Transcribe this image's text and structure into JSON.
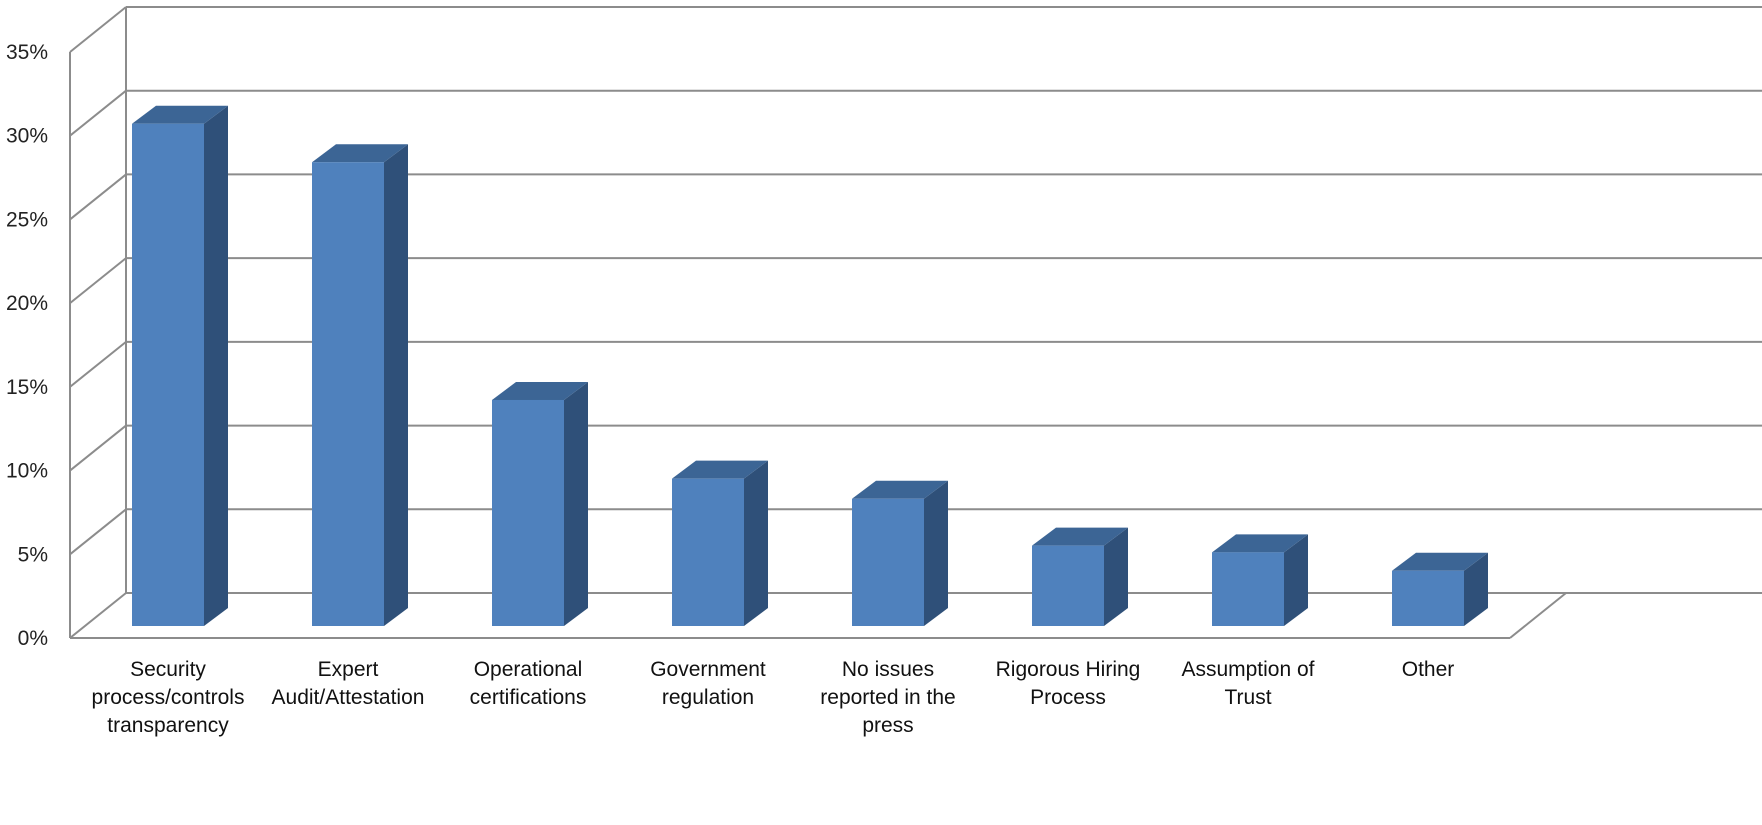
{
  "chart_data": {
    "type": "bar",
    "categories": [
      [
        "Security",
        "process/controls",
        "transparency"
      ],
      [
        "Expert",
        "Audit/Attestation"
      ],
      [
        "Operational",
        "certifications"
      ],
      [
        "Government",
        "regulation"
      ],
      [
        "No issues",
        "reported in the",
        "press"
      ],
      [
        "Rigorous Hiring",
        "Process"
      ],
      [
        "Assumption of",
        "Trust"
      ],
      [
        "Other"
      ]
    ],
    "values": [
      30,
      27.7,
      13.5,
      8.8,
      7.6,
      4.8,
      4.4,
      3.3
    ],
    "ylim": [
      0,
      35
    ],
    "yticks": [
      {
        "value": 0,
        "label": "0%"
      },
      {
        "value": 5,
        "label": "5%"
      },
      {
        "value": 10,
        "label": "10%"
      },
      {
        "value": 15,
        "label": "15%"
      },
      {
        "value": 20,
        "label": "20%"
      },
      {
        "value": 25,
        "label": "25%"
      },
      {
        "value": 30,
        "label": "30%"
      },
      {
        "value": 35,
        "label": "35%"
      }
    ],
    "grid": true,
    "style": "3d-column",
    "colors": {
      "front": "#4f81bd",
      "side": "#2f5079",
      "top": "#3c6595",
      "grid": "#8c8c8c"
    }
  }
}
